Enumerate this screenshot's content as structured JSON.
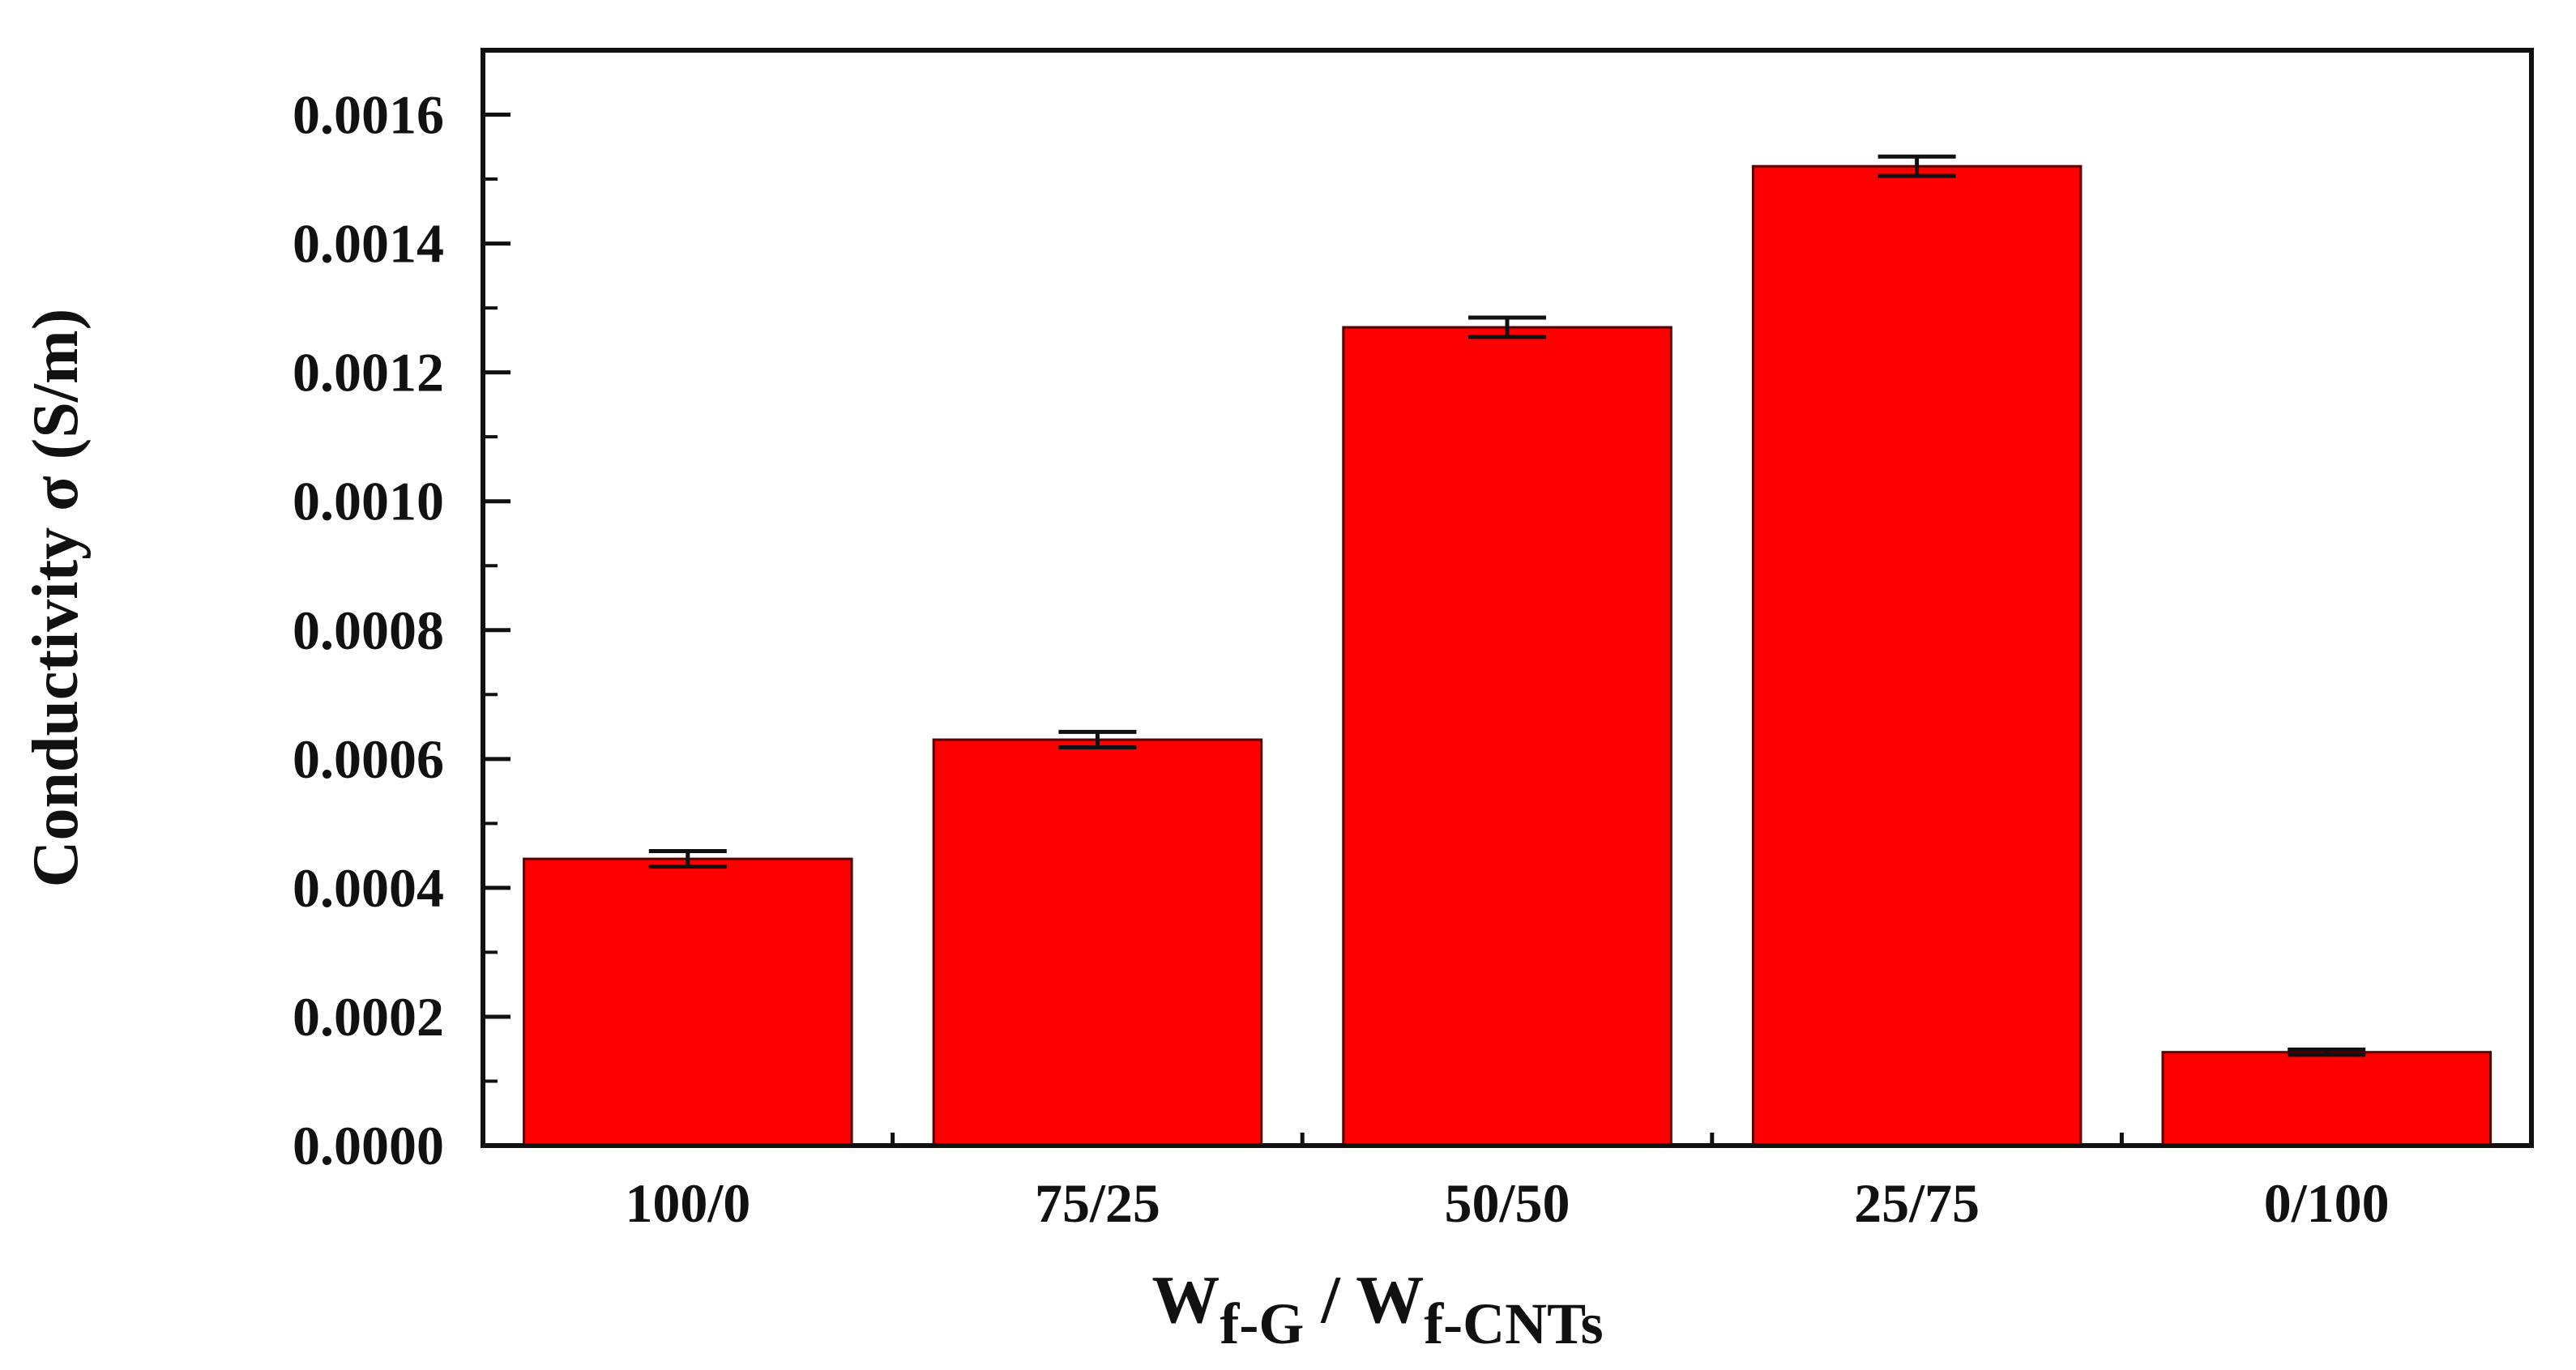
{
  "chart_data": {
    "type": "bar",
    "categories": [
      "100/0",
      "75/25",
      "50/50",
      "25/75",
      "0/100"
    ],
    "values": [
      0.000445,
      0.00063,
      0.00127,
      0.00152,
      0.000145
    ],
    "errors": [
      1.2e-05,
      1.2e-05,
      1.5e-05,
      1.5e-05,
      4e-06
    ],
    "y_ticks": [
      "0.0000",
      "0.0002",
      "0.0004",
      "0.0006",
      "0.0008",
      "0.0010",
      "0.0012",
      "0.0014",
      "0.0016"
    ],
    "ylim": [
      0,
      0.0017
    ],
    "ylabel": "Conductivity σ (S/m)",
    "xlabel": {
      "w1": "W",
      "sub1": "f-G",
      "sep": " / ",
      "w2": "W",
      "sub2": "f-CNTs"
    },
    "colors": {
      "bar_fill": "#ff0000",
      "bar_stroke": "#5a0000",
      "axis": "#111111"
    },
    "grid": false
  }
}
